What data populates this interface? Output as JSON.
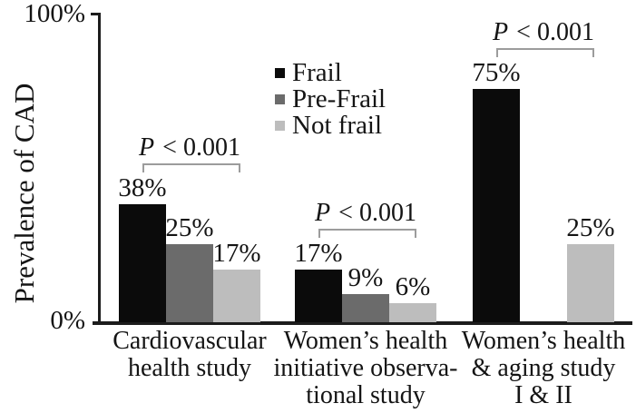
{
  "figure": {
    "ylabel": "Prevalence of CAD",
    "yticks": {
      "top": "100%",
      "bottom": "0%"
    }
  },
  "legend": {
    "items": [
      {
        "label": "Frail",
        "color": "#0b0b0b"
      },
      {
        "label": "Pre-Frail",
        "color": "#6b6b6b"
      },
      {
        "label": "Not frail",
        "color": "#bdbdbd"
      }
    ]
  },
  "chart_data": {
    "type": "bar",
    "title": "",
    "xlabel": "",
    "ylabel": "Prevalence of CAD",
    "ylim": [
      0,
      100
    ],
    "ytick_labels": [
      "0%",
      "100%"
    ],
    "grid": false,
    "legend_position": "top-center",
    "categories": [
      {
        "lines": [
          "Cardiovascular",
          "health study"
        ],
        "annotation": "P < 0.001"
      },
      {
        "lines": [
          "Women’s health",
          "initiative observa-",
          "tional study"
        ],
        "annotation": "P < 0.001"
      },
      {
        "lines": [
          "Women’s health",
          "& aging study",
          "I & II"
        ],
        "annotation": "P < 0.001"
      }
    ],
    "series": [
      {
        "name": "Frail",
        "color": "#0b0b0b",
        "values": [
          38,
          17,
          75
        ],
        "labels": [
          "38%",
          "17%",
          "75%"
        ]
      },
      {
        "name": "Pre-Frail",
        "color": "#6b6b6b",
        "values": [
          25,
          9,
          null
        ],
        "labels": [
          "25%",
          "9%",
          null
        ]
      },
      {
        "name": "Not frail",
        "color": "#bdbdbd",
        "values": [
          17,
          6,
          25
        ],
        "labels": [
          "17%",
          "6%",
          "25%"
        ]
      }
    ]
  }
}
